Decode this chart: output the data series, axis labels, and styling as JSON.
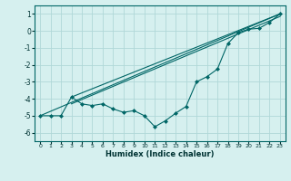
{
  "xlabel": "Humidex (Indice chaleur)",
  "bg_color": "#d6f0ef",
  "grid_color": "#b0d8d8",
  "line_color": "#006666",
  "xlim": [
    -0.5,
    23.5
  ],
  "ylim": [
    -6.5,
    1.5
  ],
  "yticks": [
    -6,
    -5,
    -4,
    -3,
    -2,
    -1,
    0,
    1
  ],
  "xticks": [
    0,
    1,
    2,
    3,
    4,
    5,
    6,
    7,
    8,
    9,
    10,
    11,
    12,
    13,
    14,
    15,
    16,
    17,
    18,
    19,
    20,
    21,
    22,
    23
  ],
  "data_x": [
    0,
    1,
    2,
    3,
    4,
    5,
    6,
    7,
    8,
    9,
    10,
    11,
    12,
    13,
    14,
    15,
    16,
    17,
    18,
    19,
    20,
    21,
    22,
    23
  ],
  "data_y": [
    -5.0,
    -5.0,
    -5.0,
    -3.9,
    -4.3,
    -4.4,
    -4.3,
    -4.6,
    -4.8,
    -4.7,
    -5.0,
    -5.65,
    -5.3,
    -4.85,
    -4.45,
    -3.0,
    -2.7,
    -2.25,
    -0.75,
    -0.1,
    0.1,
    0.15,
    0.5,
    1.0
  ],
  "line1_x": [
    0,
    23
  ],
  "line1_y": [
    -5.0,
    1.0
  ],
  "line2_x": [
    3,
    23
  ],
  "line2_y": [
    -3.9,
    1.0
  ],
  "line3_x": [
    3,
    23
  ],
  "line3_y": [
    -4.3,
    0.85
  ]
}
